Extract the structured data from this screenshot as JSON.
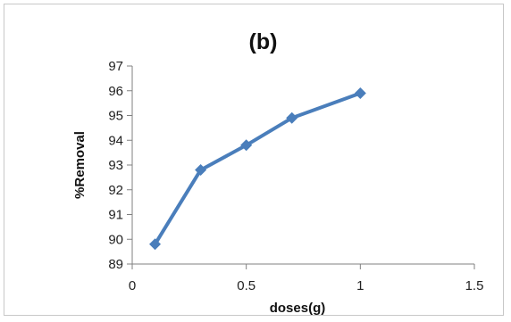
{
  "chart_data": {
    "type": "line",
    "title": "(b)",
    "xlabel": "doses(g)",
    "ylabel": "%Removal",
    "xlim": [
      0,
      1.5
    ],
    "ylim": [
      89,
      97
    ],
    "xticks": [
      0,
      0.5,
      1,
      1.5
    ],
    "xtick_labels": [
      "0",
      "0.5",
      "1",
      "1.5"
    ],
    "yticks": [
      89,
      90,
      91,
      92,
      93,
      94,
      95,
      96,
      97
    ],
    "ytick_labels": [
      "89",
      "90",
      "91",
      "92",
      "93",
      "94",
      "95",
      "96",
      "97"
    ],
    "grid": false,
    "legend": "none",
    "series": [
      {
        "x": [
          0.1,
          0.3,
          0.5,
          0.7,
          1.0
        ],
        "y": [
          89.8,
          92.8,
          93.8,
          94.9,
          95.9
        ],
        "color": "#4a7ebb",
        "marker": "diamond"
      }
    ]
  }
}
